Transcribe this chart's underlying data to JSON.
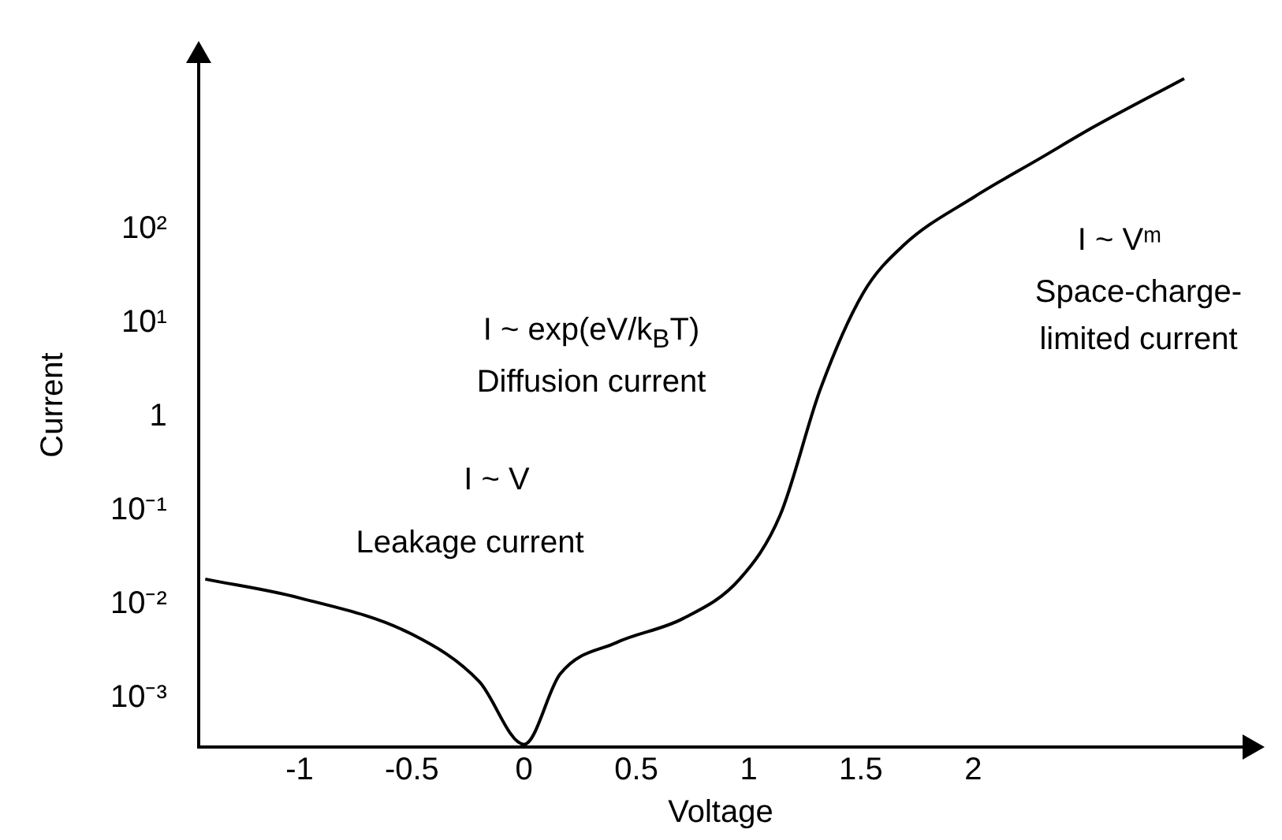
{
  "chart_data": {
    "type": "line",
    "xlabel": "Voltage",
    "ylabel": "Current",
    "log": "y",
    "x": [
      -1.42,
      -1,
      -0.5,
      -0.2,
      0,
      0.16,
      0.41,
      0.71,
      0.96,
      1.14,
      1.32,
      1.51,
      1.69,
      2.0,
      2.3,
      2.54,
      2.94
    ],
    "values": [
      0.0186,
      0.0117,
      0.0048,
      0.0015,
      0.00032,
      0.0018,
      0.0039,
      0.0071,
      0.0186,
      0.089,
      2.0,
      21,
      68,
      220,
      580,
      1260,
      4100
    ],
    "color": "#000000",
    "marker": "none",
    "line_style": "solid",
    "grid": false,
    "legend": false,
    "xlim": [
      -1.45,
      3.2
    ],
    "xticks": [
      -1,
      -0.5,
      0,
      0.5,
      1,
      1.5,
      2
    ],
    "ylim": [
      0.0003,
      6000
    ],
    "yticks": [
      {
        "value": 0.001,
        "label": "10⁻³"
      },
      {
        "value": 0.01,
        "label": "10⁻²"
      },
      {
        "value": 0.1,
        "label": "10⁻¹"
      },
      1,
      {
        "value": 10,
        "label": "10¹"
      },
      {
        "value": 100,
        "label": "10²"
      }
    ],
    "annotations": [
      "I ~ V",
      "Leakage current",
      "I ~ exp(eV/k$_{B}$T)",
      "Diffusion current",
      "I ~ Vᵐ",
      "Space-charge-",
      "limited current"
    ]
  }
}
